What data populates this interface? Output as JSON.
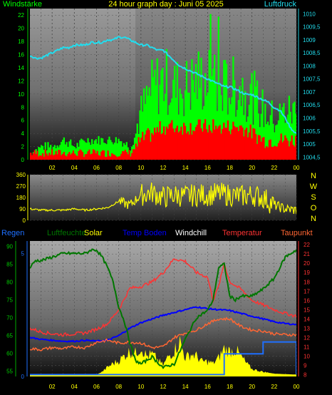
{
  "title": "24 hour graph day : Juni 05 2025",
  "colors": {
    "wind_avg": "#00ff00",
    "wind_gust": "#ff0000",
    "pressure": "#22ddee",
    "wind_dir": "#ffff00",
    "regen": "#1e6fff",
    "luftfeuchte": "#007700",
    "solar": "#ffff00",
    "temp_boden": "#0000ff",
    "windchill": "#ffffff",
    "temperatur": "#ff3333",
    "taupunkt": "#ff6633"
  },
  "chart_data": [
    {
      "type": "area",
      "name": "wind_pressure",
      "left_axis": {
        "label": "Windstärke",
        "ticks": [
          "0",
          "2",
          "4",
          "6",
          "8",
          "10",
          "12",
          "14",
          "16",
          "18",
          "20",
          "22"
        ],
        "range": [
          0,
          23
        ]
      },
      "right_axis": {
        "label": "Luftdruck",
        "ticks": [
          "1004,5",
          "1005",
          "1005,5",
          "1006",
          "1006,5",
          "1007",
          "1007,5",
          "1008",
          "1008,5",
          "1009",
          "1009,5",
          "1010"
        ],
        "range": [
          1004.4,
          1010.2
        ]
      },
      "x_ticks": [
        "02",
        "04",
        "06",
        "08",
        "10",
        "12",
        "14",
        "16",
        "18",
        "20",
        "22",
        "00"
      ],
      "pressure": {
        "x": [
          0,
          0.5,
          1,
          1.5,
          2,
          2.5,
          3,
          3.5,
          4,
          4.5,
          5,
          5.5,
          6,
          6.5,
          7,
          7.5,
          8,
          8.5,
          9,
          9.5,
          10,
          10.5,
          11,
          11.5,
          12,
          12.5,
          13,
          13.5,
          14,
          14.5,
          15,
          15.5,
          16,
          16.5,
          17,
          17.5,
          18,
          18.5,
          19,
          19.5,
          20,
          20.5,
          21,
          21.5,
          22,
          22.5,
          23,
          23.5,
          24
        ],
        "values": [
          1008.4,
          1008.3,
          1008.3,
          1008.4,
          1008.5,
          1008.6,
          1008.7,
          1008.7,
          1008.8,
          1008.8,
          1008.8,
          1008.9,
          1008.9,
          1008.9,
          1009.0,
          1009.0,
          1009.1,
          1009.1,
          1009.0,
          1008.9,
          1008.8,
          1008.8,
          1008.7,
          1008.6,
          1008.6,
          1008.4,
          1008.2,
          1008.0,
          1007.9,
          1007.8,
          1007.7,
          1007.6,
          1007.5,
          1007.4,
          1007.3,
          1007.2,
          1007.2,
          1007.1,
          1007.0,
          1006.9,
          1006.9,
          1006.8,
          1006.7,
          1006.6,
          1006.4,
          1006.3,
          1006.0,
          1005.6,
          1005.4
        ]
      },
      "wind_avg_profile": {
        "x": [
          0,
          1,
          2,
          3,
          4,
          5,
          6,
          7,
          8,
          9,
          10,
          11,
          12,
          13,
          14,
          15,
          16,
          17,
          18,
          19,
          20,
          21,
          22,
          23,
          24
        ],
        "values": [
          1,
          2,
          2,
          3,
          2,
          3,
          3,
          3,
          3,
          2,
          6,
          9,
          10,
          9,
          9,
          10,
          10,
          9,
          9,
          9,
          8,
          6,
          5,
          6,
          6
        ]
      },
      "wind_gust_profile": {
        "x": [
          0,
          1,
          2,
          3,
          4,
          5,
          6,
          7,
          8,
          9,
          10,
          11,
          12,
          13,
          14,
          15,
          16,
          17,
          18,
          19,
          20,
          21,
          22,
          23,
          24
        ],
        "values": [
          1,
          1,
          1,
          1,
          1,
          1,
          1,
          1,
          1,
          1,
          3,
          4,
          5,
          5,
          5,
          5,
          5,
          5,
          5,
          5,
          4,
          3,
          3,
          3,
          3
        ]
      }
    },
    {
      "type": "line",
      "name": "wind_direction",
      "left_axis": {
        "ticks": [
          "0",
          "90",
          "180",
          "270",
          "360"
        ],
        "range": [
          0,
          360
        ]
      },
      "right_labels": [
        "N",
        "W",
        "S",
        "O",
        "N"
      ],
      "x": [
        0,
        1,
        2,
        3,
        4,
        5,
        6,
        7,
        8,
        9,
        10,
        11,
        12,
        13,
        14,
        15,
        16,
        17,
        18,
        19,
        20,
        21,
        22,
        23,
        24
      ],
      "values": [
        90,
        80,
        80,
        80,
        90,
        80,
        90,
        100,
        150,
        120,
        200,
        220,
        180,
        200,
        190,
        200,
        200,
        210,
        200,
        190,
        200,
        180,
        120,
        90,
        80
      ]
    },
    {
      "type": "line",
      "name": "multi_sensor",
      "legend": [
        "Regen",
        "Luftfeuchte",
        "Solar",
        "Temp Boden",
        "Windchill",
        "Temperatur",
        "Taupunkt"
      ],
      "left_axis": {
        "ticks": [
          "55",
          "60",
          "65",
          "70",
          "75",
          "80",
          "85",
          "90"
        ],
        "range": [
          53.5,
          91.5
        ]
      },
      "left_axis2": {
        "ticks": [
          "0",
          "5"
        ],
        "range": [
          0,
          5.5
        ]
      },
      "right_axis": {
        "ticks": [
          "8",
          "9",
          "10",
          "11",
          "12",
          "13",
          "14",
          "15",
          "16",
          "17",
          "18",
          "19",
          "20",
          "21",
          "22"
        ],
        "range": [
          7.8,
          22.4
        ]
      },
      "x_ticks": [
        "02",
        "04",
        "06",
        "08",
        "10",
        "12",
        "14",
        "16",
        "18",
        "20",
        "22",
        "00"
      ],
      "series": [
        {
          "name": "Luftfeuchte",
          "x": [
            0,
            0.5,
            1,
            2,
            3,
            4,
            5,
            5.5,
            6,
            6.5,
            7,
            7.5,
            8,
            8.5,
            9,
            9.5,
            10,
            11,
            12,
            13,
            14,
            15,
            16,
            16.5,
            17,
            17.5,
            18,
            18.5,
            19,
            20,
            21,
            22,
            22.5,
            23,
            23.5,
            24
          ],
          "values": [
            84,
            86,
            86,
            87,
            88,
            88,
            88,
            89,
            89,
            87,
            84,
            80,
            73,
            69,
            63,
            58,
            57,
            59,
            56,
            57,
            64,
            70,
            72,
            75,
            84,
            85,
            76,
            75,
            76,
            76,
            78,
            81,
            84,
            87,
            88,
            89
          ]
        },
        {
          "name": "Temperatur",
          "x": [
            0,
            1,
            2,
            3,
            4,
            5,
            6,
            7,
            8,
            9,
            10,
            11,
            12,
            13,
            14,
            15,
            16,
            16.5,
            17,
            17.5,
            18,
            18.5,
            19,
            20,
            21,
            22,
            23,
            24
          ],
          "values": [
            13.0,
            12.6,
            12.4,
            12.3,
            12.4,
            12.5,
            12.9,
            13.5,
            15.0,
            17.3,
            17.5,
            18.0,
            19.0,
            20.5,
            20.2,
            19.0,
            18.5,
            16.0,
            17.5,
            20.0,
            18.0,
            17.6,
            17.2,
            16.0,
            15.5,
            15.0,
            14.6,
            14.3
          ]
        },
        {
          "name": "Temp Boden",
          "x": [
            0,
            1,
            2,
            3,
            4,
            5,
            6,
            7,
            8,
            9,
            10,
            11,
            12,
            13,
            14,
            15,
            16,
            17,
            18,
            19,
            20,
            21,
            22,
            23,
            24
          ],
          "values": [
            12.0,
            11.8,
            11.7,
            11.6,
            11.6,
            11.7,
            11.6,
            11.7,
            12.2,
            13.0,
            13.6,
            14.0,
            14.4,
            14.7,
            15.0,
            15.3,
            15.1,
            15.0,
            14.9,
            14.6,
            14.3,
            14.0,
            13.7,
            13.5,
            13.4
          ]
        },
        {
          "name": "Taupunkt",
          "x": [
            0,
            1,
            2,
            3,
            4,
            5,
            6,
            7,
            8,
            9,
            10,
            11,
            12,
            13,
            14,
            15,
            16,
            17,
            18,
            19,
            20,
            21,
            22,
            23,
            24
          ],
          "values": [
            10.8,
            10.7,
            10.9,
            10.8,
            11.0,
            10.9,
            11.5,
            11.7,
            11.4,
            11.5,
            11.4,
            10.9,
            11.0,
            12.0,
            12.5,
            12.8,
            13.5,
            14.0,
            14.0,
            13.2,
            12.8,
            12.7,
            12.4,
            12.3,
            12.3
          ]
        },
        {
          "name": "Regen",
          "x": [
            0,
            17,
            17.5,
            18,
            19,
            20,
            21,
            22,
            23,
            23.8,
            24
          ],
          "values": [
            0,
            0,
            0.7,
            0.7,
            0.7,
            0.7,
            1.1,
            1.1,
            1.1,
            1.1,
            0
          ]
        },
        {
          "name": "Solar",
          "x": [
            0,
            6,
            6.5,
            7,
            7.5,
            8,
            8.5,
            9,
            9.5,
            10,
            10.5,
            11,
            11.5,
            12,
            12.5,
            13,
            13.5,
            14,
            14.5,
            15,
            15.5,
            16,
            16.5,
            17,
            17.5,
            18,
            18.5,
            19,
            19.5,
            20,
            21,
            22,
            23,
            24
          ],
          "values": [
            0,
            0,
            0.3,
            0.8,
            1.2,
            1.5,
            2.0,
            2.5,
            2.3,
            3.0,
            2.0,
            2.2,
            1.6,
            1.0,
            2.0,
            2.6,
            3.6,
            1.8,
            2.2,
            2.0,
            1.4,
            1.4,
            1.2,
            1.8,
            2.8,
            2.5,
            2.7,
            2.0,
            1.2,
            0.6,
            0.3,
            0.1,
            0.05,
            0
          ]
        }
      ]
    }
  ]
}
